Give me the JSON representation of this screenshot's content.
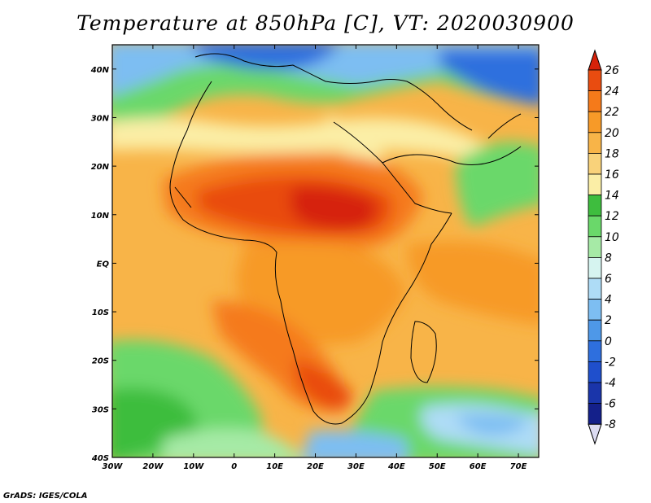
{
  "title": "Temperature at 850hPa [C], VT: 2020030900",
  "credit": "GrADS: IGES/COLA",
  "map": {
    "lon_range": [
      -30,
      75
    ],
    "lat_range": [
      -40,
      45
    ],
    "x_ticks": [
      "30W",
      "20W",
      "10W",
      "0",
      "10E",
      "20E",
      "30E",
      "40E",
      "50E",
      "60E",
      "70E"
    ],
    "y_ticks": [
      "40S",
      "30S",
      "20S",
      "10S",
      "EQ",
      "10N",
      "20N",
      "30N",
      "40N"
    ]
  },
  "colorbar": {
    "labels": [
      "26",
      "24",
      "22",
      "20",
      "18",
      "16",
      "14",
      "12",
      "10",
      "8",
      "6",
      "4",
      "2",
      "0",
      "-2",
      "-4",
      "-6",
      "-8"
    ],
    "colors": [
      "#d6220a",
      "#e94c10",
      "#f57a1a",
      "#f79a28",
      "#f8b448",
      "#f9d27a",
      "#fbeea6",
      "#3ebd3e",
      "#6ad86a",
      "#a6eaa6",
      "#d6f4f0",
      "#aedcf6",
      "#7dbef2",
      "#4e98e8",
      "#2e6fde",
      "#1f4fcc",
      "#1a35aa",
      "#14208a",
      "#dcdcf2"
    ]
  }
}
